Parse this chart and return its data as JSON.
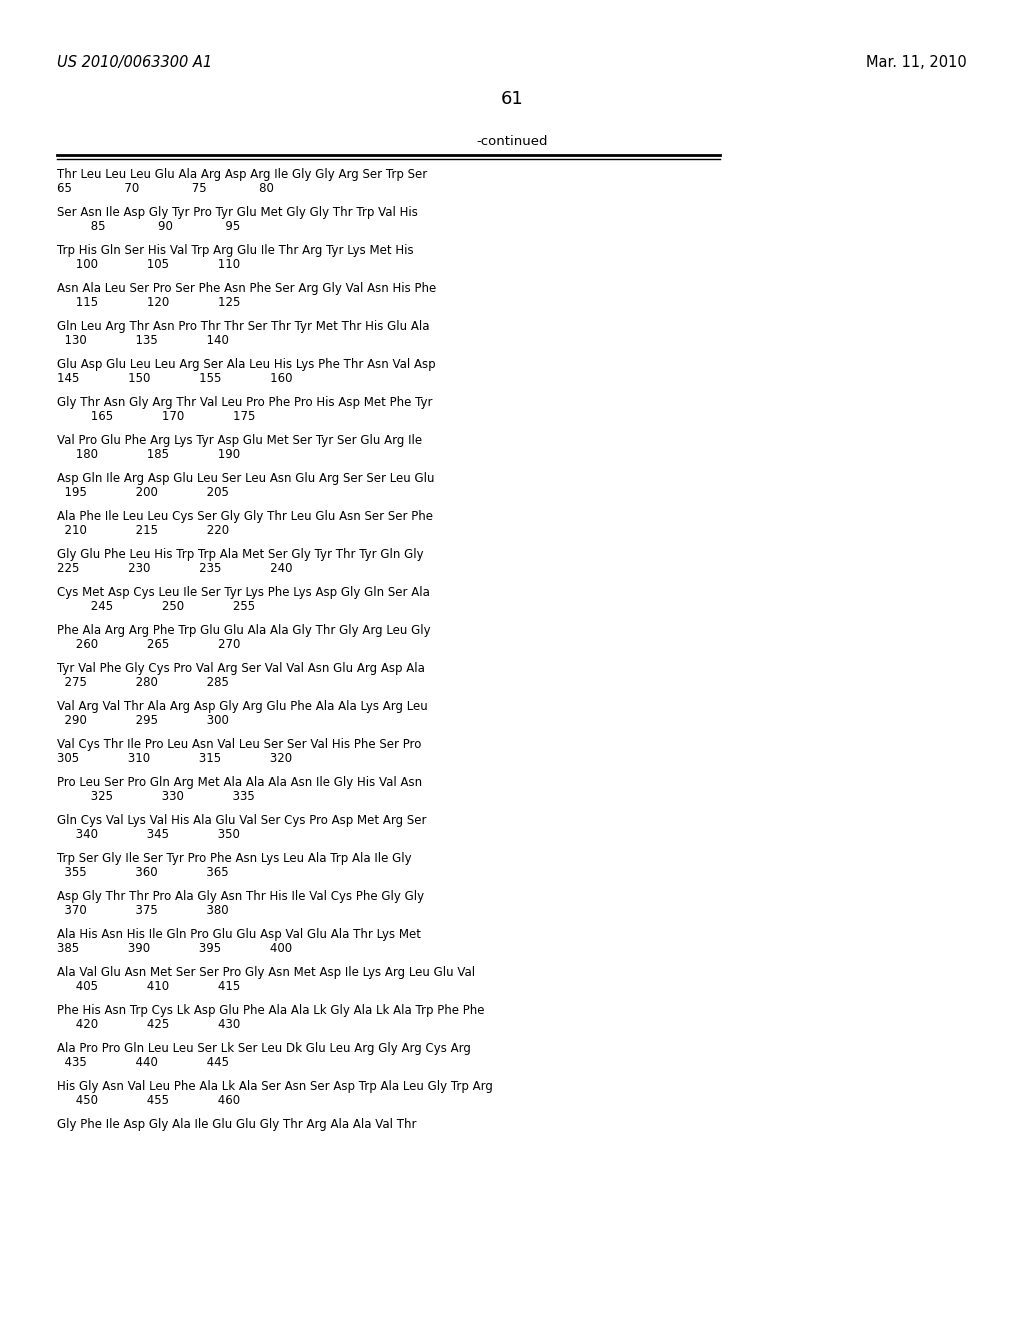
{
  "header_left": "US 2010/0063300 A1",
  "header_right": "Mar. 11, 2010",
  "page_number": "61",
  "continued_label": "-continued",
  "bg": "#ffffff",
  "seq_lines": [
    [
      "Thr Leu Leu Leu Glu Ala Arg Asp Arg Ile Gly Gly Arg Ser Trp Ser",
      "65              70              75              80"
    ],
    [
      "Ser Asn Ile Asp Gly Tyr Pro Tyr Glu Met Gly Gly Thr Trp Val His",
      "         85              90              95"
    ],
    [
      "Trp His Gln Ser His Val Trp Arg Glu Ile Thr Arg Tyr Lys Met His",
      "     100             105             110"
    ],
    [
      "Asn Ala Leu Ser Pro Ser Phe Asn Phe Ser Arg Gly Val Asn His Phe",
      "     115             120             125"
    ],
    [
      "Gln Leu Arg Thr Asn Pro Thr Thr Ser Thr Tyr Met Thr His Glu Ala",
      "  130             135             140"
    ],
    [
      "Glu Asp Glu Leu Leu Arg Ser Ala Leu His Lys Phe Thr Asn Val Asp",
      "145             150             155             160"
    ],
    [
      "Gly Thr Asn Gly Arg Thr Val Leu Pro Phe Pro His Asp Met Phe Tyr",
      "         165             170             175"
    ],
    [
      "Val Pro Glu Phe Arg Lys Tyr Asp Glu Met Ser Tyr Ser Glu Arg Ile",
      "     180             185             190"
    ],
    [
      "Asp Gln Ile Arg Asp Glu Leu Ser Leu Asn Glu Arg Ser Ser Leu Glu",
      "  195             200             205"
    ],
    [
      "Ala Phe Ile Leu Leu Cys Ser Gly Gly Thr Leu Glu Asn Ser Ser Phe",
      "  210             215             220"
    ],
    [
      "Gly Glu Phe Leu His Trp Trp Ala Met Ser Gly Tyr Thr Tyr Gln Gly",
      "225             230             235             240"
    ],
    [
      "Cys Met Asp Cys Leu Ile Ser Tyr Lys Phe Lys Asp Gly Gln Ser Ala",
      "         245             250             255"
    ],
    [
      "Phe Ala Arg Arg Phe Trp Glu Glu Ala Ala Gly Thr Gly Arg Leu Gly",
      "     260             265             270"
    ],
    [
      "Tyr Val Phe Gly Cys Pro Val Arg Ser Val Val Asn Glu Arg Asp Ala",
      "  275             280             285"
    ],
    [
      "Val Arg Val Thr Ala Arg Asp Gly Arg Glu Phe Ala Ala Lys Arg Leu",
      "  290             295             300"
    ],
    [
      "Val Cys Thr Ile Pro Leu Asn Val Leu Ser Ser Val His Phe Ser Pro",
      "305             310             315             320"
    ],
    [
      "Pro Leu Ser Pro Gln Arg Met Ala Ala Ala Asn Ile Gly His Val Asn",
      "         325             330             335"
    ],
    [
      "Gln Cys Val Lys Val His Ala Glu Val Ser Cys Pro Asp Met Arg Ser",
      "     340             345             350"
    ],
    [
      "Trp Ser Gly Ile Ser Tyr Pro Phe Asn Lys Leu Ala Trp Ala Ile Gly",
      "  355             360             365"
    ],
    [
      "Asp Gly Thr Thr Pro Ala Gly Asn Thr His Ile Val Cys Phe Gly Gly",
      "  370             375             380"
    ],
    [
      "Ala His Asn His Ile Gln Pro Glu Glu Asp Val Glu Ala Thr Lys Met",
      "385             390             395             400"
    ],
    [
      "Ala Val Glu Asn Met Ser Ser Pro Gly Asn Met Asp Ile Lys Arg Leu Glu Val",
      "     405             410             415"
    ],
    [
      "Phe His Asn Trp Cys Lk Asp Glu Phe Ala Ala Lk Gly Ala Lk Ala Trp Phe Phe",
      "     420             425             430"
    ],
    [
      "Ala Pro Pro Gln Leu Leu Ser Lk Ser Leu Dk Glu Leu Arg Gly Arg Cys Arg",
      "  435             440             445"
    ],
    [
      "His Gly Asn Val Leu Phe Ala Lk Ala Ser Asn Ser Asp Trp Ala Leu Gly Trp Arg",
      "     450             455             460"
    ],
    [
      "Gly Phe Ile Asp Gly Ala Ile Glu Glu Gly Thr Arg Ala Ala Val Thr",
      ""
    ]
  ]
}
